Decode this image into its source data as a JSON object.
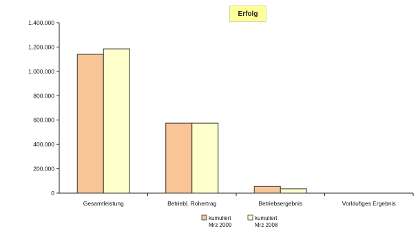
{
  "chart_data": {
    "type": "bar",
    "title": "Erfolg",
    "categories": [
      "Gesamtleistung",
      "Betriebl. Rohertrag",
      "Betriebsergebnis",
      "Vorläufiges Ergebnis"
    ],
    "series": [
      {
        "name": "kumuliert Mrz 2009",
        "name_lines": [
          "kumuliert",
          "Mrz 2009"
        ],
        "color": "#f9c596",
        "values": [
          1140000,
          575000,
          55000,
          0
        ]
      },
      {
        "name": "kumuliert Mrz 2008",
        "name_lines": [
          "kumuliert",
          "Mrz 2008"
        ],
        "color": "#ffffcc",
        "values": [
          1185000,
          575000,
          35000,
          0
        ]
      }
    ],
    "ylim": [
      0,
      1400000
    ],
    "yticks": [
      0,
      200000,
      400000,
      600000,
      800000,
      1000000,
      1200000,
      1400000
    ],
    "ytick_labels": [
      "0",
      "200.000",
      "400.000",
      "600.000",
      "800.000",
      "1.000.000",
      "1.200.000",
      "1.400.000"
    ],
    "grid": false,
    "legend_position": "bottom"
  },
  "colors": {
    "bar_border": "#333333",
    "axis": "#222222",
    "title_bg": "#ffff99"
  }
}
